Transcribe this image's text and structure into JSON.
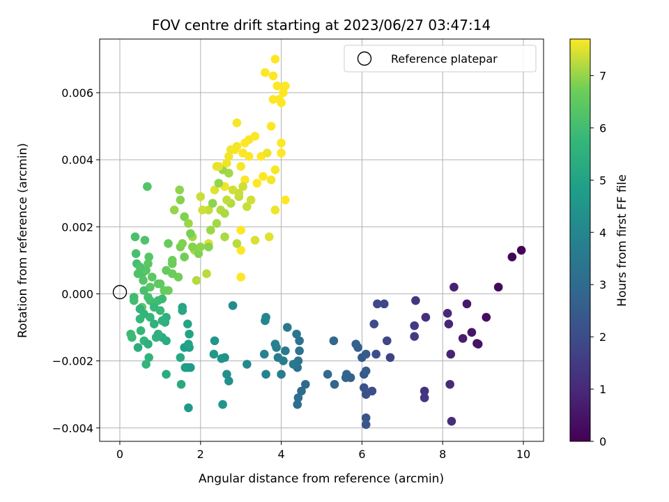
{
  "chart_data": {
    "type": "scatter",
    "title": "FOV centre drift starting at 2023/06/27 03:47:14",
    "xlabel": "Angular distance from reference (arcmin)",
    "ylabel": "Rotation from reference (arcmin)",
    "xlim": [
      -0.5,
      10.5
    ],
    "ylim": [
      -0.0044,
      0.0076
    ],
    "xticks": [
      0,
      2,
      4,
      6,
      8,
      10
    ],
    "xtick_labels": [
      "0",
      "2",
      "4",
      "6",
      "8",
      "10"
    ],
    "yticks": [
      -0.004,
      -0.002,
      0.0,
      0.002,
      0.004,
      0.006
    ],
    "ytick_labels": [
      "−0.004",
      "−0.002",
      "0.000",
      "0.002",
      "0.004",
      "0.006"
    ],
    "grid": true,
    "legend": {
      "position": "top-right",
      "entries": [
        {
          "label": "Reference platepar",
          "marker": "open-circle"
        }
      ]
    },
    "colorbar": {
      "label": "Hours from first FF file",
      "colormap": "viridis",
      "range": [
        0,
        7.7
      ],
      "ticks": [
        0,
        1,
        2,
        3,
        4,
        5,
        6,
        7
      ],
      "tick_labels": [
        "0",
        "1",
        "2",
        "3",
        "4",
        "5",
        "6",
        "7"
      ]
    },
    "reference_point": {
      "x": 0,
      "y": 0
    },
    "points": [
      [
        9.95,
        0.0013,
        0.05
      ],
      [
        9.72,
        0.0011,
        0.1
      ],
      [
        9.38,
        0.0002,
        0.2
      ],
      [
        9.08,
        -0.0007,
        0.3
      ],
      [
        8.88,
        -0.0015,
        0.4
      ],
      [
        8.85,
        -0.00148,
        0.45
      ],
      [
        8.72,
        -0.00115,
        0.5
      ],
      [
        8.6,
        -0.0003,
        0.6
      ],
      [
        8.5,
        -0.00133,
        0.7
      ],
      [
        8.28,
        0.0002,
        0.8
      ],
      [
        8.2,
        -0.0018,
        0.85
      ],
      [
        8.15,
        -0.0009,
        0.9
      ],
      [
        8.12,
        -0.00058,
        1.0
      ],
      [
        8.18,
        -0.0027,
        1.05
      ],
      [
        8.22,
        -0.0038,
        1.1
      ],
      [
        7.58,
        -0.0007,
        1.2
      ],
      [
        7.55,
        -0.0029,
        1.3
      ],
      [
        7.55,
        -0.0031,
        1.35
      ],
      [
        7.33,
        -0.0002,
        1.4
      ],
      [
        7.3,
        -0.00095,
        1.5
      ],
      [
        7.3,
        -0.00127,
        1.55
      ],
      [
        6.7,
        -0.0019,
        1.7
      ],
      [
        6.62,
        -0.0014,
        1.8
      ],
      [
        6.55,
        -0.0003,
        1.85
      ],
      [
        6.38,
        -0.0003,
        1.9
      ],
      [
        6.3,
        -0.0009,
        2.0
      ],
      [
        6.35,
        -0.0018,
        2.05
      ],
      [
        6.25,
        -0.0029,
        2.1
      ],
      [
        6.1,
        -0.003,
        2.15
      ],
      [
        6.05,
        -0.0028,
        2.2
      ],
      [
        6.1,
        -0.0037,
        2.25
      ],
      [
        6.1,
        -0.0039,
        2.3
      ],
      [
        6.05,
        -0.0024,
        2.4
      ],
      [
        6.0,
        -0.0019,
        2.45
      ],
      [
        6.1,
        -0.0018,
        2.5
      ],
      [
        6.1,
        -0.0023,
        2.55
      ],
      [
        5.9,
        -0.0016,
        2.6
      ],
      [
        5.85,
        -0.0015,
        2.65
      ],
      [
        5.72,
        -0.0025,
        2.7
      ],
      [
        5.6,
        -0.0025,
        2.75
      ],
      [
        5.62,
        -0.0024,
        2.8
      ],
      [
        5.32,
        -0.0027,
        2.85
      ],
      [
        5.3,
        -0.0014,
        2.9
      ],
      [
        5.15,
        -0.0024,
        2.95
      ],
      [
        4.6,
        -0.0027,
        3.0
      ],
      [
        4.5,
        -0.0029,
        3.05
      ],
      [
        4.42,
        -0.0031,
        3.1
      ],
      [
        4.4,
        -0.0033,
        3.15
      ],
      [
        4.4,
        -0.0022,
        3.2
      ],
      [
        4.42,
        -0.002,
        3.25
      ],
      [
        4.45,
        -0.0017,
        3.3
      ],
      [
        4.45,
        -0.0014,
        3.35
      ],
      [
        4.38,
        -0.0012,
        3.4
      ],
      [
        4.15,
        -0.001,
        3.45
      ],
      [
        4.3,
        -0.0021,
        3.5
      ],
      [
        4.1,
        -0.0017,
        3.55
      ],
      [
        4.05,
        -0.002,
        3.6
      ],
      [
        4.0,
        -0.0024,
        3.65
      ],
      [
        3.92,
        -0.0019,
        3.7
      ],
      [
        3.88,
        -0.0016,
        3.75
      ],
      [
        3.85,
        -0.0015,
        3.8
      ],
      [
        3.62,
        -0.0024,
        3.85
      ],
      [
        3.58,
        -0.0018,
        3.9
      ],
      [
        3.6,
        -0.0008,
        3.95
      ],
      [
        3.62,
        -0.0007,
        4.0
      ],
      [
        3.15,
        -0.0021,
        4.1
      ],
      [
        2.8,
        -0.00035,
        4.2
      ],
      [
        2.65,
        -0.0024,
        4.3
      ],
      [
        2.7,
        -0.0026,
        4.35
      ],
      [
        2.6,
        -0.0019,
        4.4
      ],
      [
        2.52,
        -0.00193,
        4.45
      ],
      [
        2.55,
        -0.0033,
        4.5
      ],
      [
        2.35,
        -0.0014,
        4.55
      ],
      [
        2.33,
        -0.0018,
        4.6
      ],
      [
        1.7,
        -0.0034,
        4.65
      ],
      [
        1.75,
        -0.0022,
        4.7
      ],
      [
        1.68,
        -0.0022,
        4.75
      ],
      [
        1.62,
        -0.0022,
        4.8
      ],
      [
        1.6,
        -0.0016,
        4.85
      ],
      [
        1.72,
        -0.0016,
        4.9
      ],
      [
        1.7,
        -0.0015,
        4.95
      ],
      [
        1.72,
        -0.0012,
        5.0
      ],
      [
        1.68,
        -0.0009,
        5.05
      ],
      [
        1.55,
        -0.0004,
        5.1
      ],
      [
        1.55,
        -0.0005,
        5.15
      ],
      [
        1.5,
        -0.0019,
        5.2
      ],
      [
        1.52,
        -0.0027,
        5.25
      ],
      [
        1.15,
        -0.0024,
        5.3
      ],
      [
        1.15,
        -0.0014,
        5.35
      ],
      [
        1.05,
        -0.0013,
        5.4
      ],
      [
        1.12,
        -0.00085,
        5.45
      ],
      [
        1.15,
        -0.0007,
        5.5
      ],
      [
        0.9,
        -0.0013,
        5.55
      ],
      [
        0.72,
        -0.0019,
        5.6
      ],
      [
        0.65,
        -0.0021,
        5.65
      ],
      [
        0.6,
        -0.0014,
        5.7
      ],
      [
        0.52,
        -0.0011,
        5.75
      ],
      [
        0.5,
        -0.00075,
        5.8
      ],
      [
        0.3,
        -0.0013,
        5.85
      ],
      [
        0.27,
        -0.0012,
        5.9
      ],
      [
        0.35,
        -0.0001,
        5.95
      ],
      [
        0.35,
        -0.0002,
        6.0
      ],
      [
        0.42,
        0.0009,
        6.05
      ],
      [
        0.4,
        0.0012,
        6.1
      ],
      [
        0.38,
        0.0017,
        6.15
      ],
      [
        0.55,
        0.0006,
        6.2
      ],
      [
        0.62,
        0.0016,
        6.25
      ],
      [
        0.68,
        0.0032,
        6.3
      ],
      [
        0.72,
        0.0011,
        6.35
      ],
      [
        0.75,
        0.0002,
        6.4
      ],
      [
        0.55,
        -0.0004,
        6.45
      ],
      [
        1.0,
        0.0003,
        6.5
      ],
      [
        1.15,
        0.0007,
        6.55
      ],
      [
        1.2,
        0.0015,
        6.6
      ],
      [
        1.3,
        0.0009,
        6.65
      ],
      [
        1.2,
        0.0001,
        6.7
      ],
      [
        1.45,
        0.0005,
        6.75
      ],
      [
        1.5,
        0.0014,
        6.8
      ],
      [
        1.6,
        0.0023,
        6.85
      ],
      [
        1.5,
        0.0028,
        6.9
      ],
      [
        1.48,
        0.0031,
        6.95
      ],
      [
        1.35,
        0.0025,
        7.0
      ],
      [
        1.7,
        0.0021,
        7.05
      ],
      [
        1.8,
        0.0017,
        7.1
      ],
      [
        1.85,
        0.0013,
        7.15
      ],
      [
        1.9,
        0.0004,
        7.2
      ],
      [
        2.15,
        0.0006,
        7.25
      ],
      [
        2.2,
        0.0025,
        7.3
      ],
      [
        2.0,
        0.0029,
        7.35
      ],
      [
        2.05,
        0.0025,
        7.4
      ],
      [
        2.2,
        0.0015,
        7.45
      ],
      [
        2.35,
        0.0031,
        7.5
      ],
      [
        2.4,
        0.0038,
        7.55
      ],
      [
        2.6,
        0.0032,
        7.6
      ],
      [
        2.75,
        0.0043,
        7.62
      ],
      [
        2.9,
        0.0051,
        7.65
      ],
      [
        3.0,
        0.0038,
        7.66
      ],
      [
        3.1,
        0.0034,
        7.67
      ],
      [
        3.2,
        0.0046,
        7.68
      ],
      [
        3.35,
        0.0047,
        7.69
      ],
      [
        3.0,
        0.0019,
        7.7
      ],
      [
        3.0,
        0.0005,
        7.7
      ],
      [
        3.0,
        0.0013,
        7.71
      ],
      [
        3.4,
        0.0033,
        7.72
      ],
      [
        3.5,
        0.0041,
        7.73
      ],
      [
        3.55,
        0.0035,
        7.74
      ],
      [
        3.6,
        0.0066,
        7.75
      ],
      [
        3.8,
        0.0065,
        7.76
      ],
      [
        3.75,
        0.005,
        7.77
      ],
      [
        3.8,
        0.0058,
        7.78
      ],
      [
        3.85,
        0.007,
        7.79
      ],
      [
        3.9,
        0.0062,
        7.8
      ],
      [
        3.95,
        0.0058,
        7.8
      ],
      [
        4.0,
        0.0057,
        7.8
      ],
      [
        4.05,
        0.006,
        7.8
      ],
      [
        4.1,
        0.0062,
        7.8
      ],
      [
        4.0,
        0.0042,
        7.75
      ],
      [
        4.1,
        0.0028,
        7.7
      ],
      [
        4.0,
        0.0045,
        7.7
      ],
      [
        3.75,
        0.0034,
        7.65
      ],
      [
        3.85,
        0.0037,
        7.65
      ],
      [
        3.85,
        0.0025,
        7.6
      ],
      [
        3.65,
        0.0042,
        7.6
      ],
      [
        3.7,
        0.0017,
        7.5
      ],
      [
        3.35,
        0.0016,
        7.45
      ],
      [
        3.25,
        0.0028,
        7.4
      ],
      [
        3.15,
        0.0026,
        7.35
      ],
      [
        2.95,
        0.0029,
        7.3
      ],
      [
        2.9,
        0.0015,
        7.25
      ],
      [
        2.75,
        0.0027,
        7.2
      ],
      [
        2.6,
        0.0017,
        7.15
      ],
      [
        2.7,
        0.0036,
        7.1
      ],
      [
        2.55,
        0.0037,
        7.05
      ],
      [
        2.45,
        0.0033,
        7.0
      ],
      [
        2.3,
        0.0027,
        6.95
      ],
      [
        2.2,
        0.0014,
        6.9
      ],
      [
        1.95,
        0.0012,
        6.85
      ],
      [
        1.75,
        0.0018,
        6.8
      ],
      [
        1.6,
        0.0011,
        6.75
      ],
      [
        1.3,
        0.001,
        6.7
      ],
      [
        1.1,
        0.0001,
        6.6
      ],
      [
        0.95,
        0.0003,
        6.5
      ],
      [
        0.8,
        0.0005,
        6.45
      ],
      [
        0.7,
        0.0009,
        6.4
      ],
      [
        0.65,
        0.0007,
        6.35
      ],
      [
        0.58,
        0.0004,
        6.3
      ],
      [
        0.5,
        0.0008,
        6.25
      ],
      [
        0.45,
        0.0006,
        6.2
      ],
      [
        0.6,
        0.0001,
        6.15
      ],
      [
        0.7,
        -0.0001,
        6.1
      ],
      [
        0.75,
        -0.0002,
        6.05
      ],
      [
        0.85,
        -0.0003,
        6.0
      ],
      [
        0.95,
        -0.0002,
        5.95
      ],
      [
        1.05,
        -0.00015,
        5.9
      ],
      [
        1.0,
        -0.0005,
        5.85
      ],
      [
        0.85,
        -0.0004,
        5.8
      ],
      [
        0.75,
        -0.0007,
        5.75
      ],
      [
        0.6,
        -0.0006,
        5.7
      ],
      [
        0.5,
        -0.00045,
        5.65
      ],
      [
        1.05,
        -0.0008,
        5.6
      ],
      [
        0.85,
        -0.0009,
        5.55
      ],
      [
        0.95,
        -0.0012,
        5.5
      ],
      [
        0.7,
        -0.0015,
        5.45
      ],
      [
        0.45,
        -0.0016,
        5.4
      ],
      [
        2.45,
        0.0038,
        7.55
      ],
      [
        2.65,
        0.0039,
        7.6
      ],
      [
        2.7,
        0.0041,
        7.62
      ],
      [
        2.85,
        0.0043,
        7.64
      ],
      [
        2.9,
        0.0044,
        7.66
      ],
      [
        3.05,
        0.0042,
        7.68
      ],
      [
        3.1,
        0.0045,
        7.7
      ],
      [
        3.2,
        0.0041,
        7.72
      ],
      [
        2.8,
        0.0031,
        7.4
      ],
      [
        2.95,
        0.003,
        7.35
      ],
      [
        3.05,
        0.0032,
        7.38
      ],
      [
        2.65,
        0.0028,
        7.3
      ],
      [
        2.5,
        0.0025,
        7.2
      ],
      [
        2.6,
        0.0024,
        7.15
      ],
      [
        2.4,
        0.0021,
        7.1
      ],
      [
        2.25,
        0.0019,
        7.05
      ],
      [
        2.0,
        0.0014,
        6.95
      ],
      [
        1.8,
        0.0014,
        6.9
      ],
      [
        1.55,
        0.0015,
        6.85
      ],
      [
        1.3,
        0.0006,
        6.65
      ]
    ]
  }
}
